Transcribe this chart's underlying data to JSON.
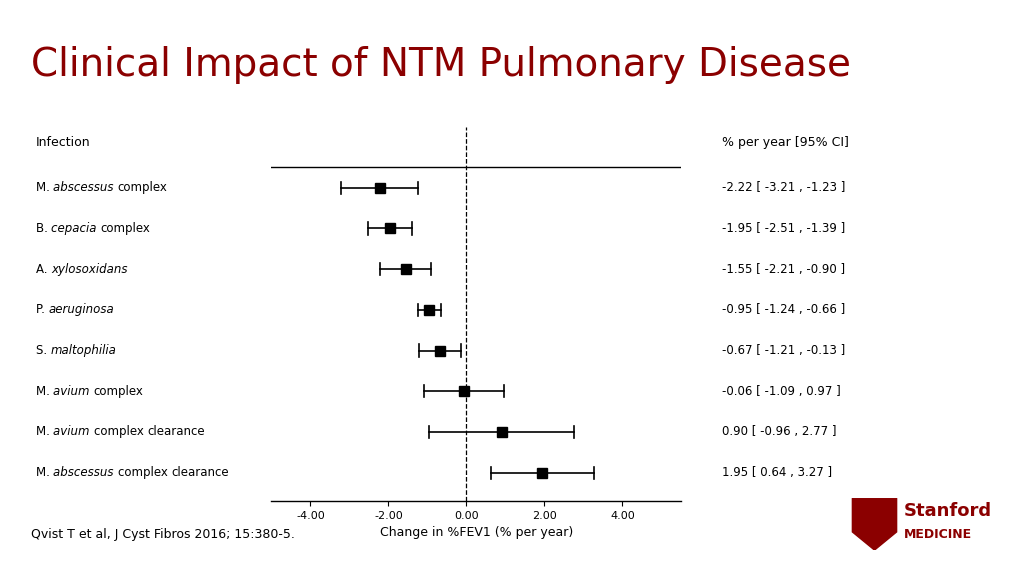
{
  "title": "Clinical Impact of NTM Pulmonary Disease",
  "title_color": "#8B0000",
  "title_fontsize": 28,
  "background_color": "#FFFFFF",
  "accent_bar_color": "#8B0000",
  "col_header_infection": "Infection",
  "col_header_ci": "% per year [95% CI]",
  "xlabel": "Change in %FEV1 (% per year)",
  "xlim": [
    -5.0,
    5.5
  ],
  "xticks": [
    -4.0,
    -2.0,
    0.0,
    2.0,
    4.0
  ],
  "xticklabels": [
    "-4.00",
    "-2.00",
    "0.00",
    "2.00",
    "4.00"
  ],
  "citation": "Qvist T et al, J Cyst Fibros 2016; 15:380-5.",
  "entries": [
    {
      "label": "M. abscessus complex",
      "italic_parts": [
        "M.",
        "abscessus"
      ],
      "mean": -2.22,
      "ci_low": -3.21,
      "ci_high": -1.23,
      "ci_text": "-2.22 [ -3.21 , -1.23 ]"
    },
    {
      "label": "B. cepacia complex",
      "italic_parts": [
        "B.",
        "cepacia"
      ],
      "mean": -1.95,
      "ci_low": -2.51,
      "ci_high": -1.39,
      "ci_text": "-1.95 [ -2.51 , -1.39 ]"
    },
    {
      "label": "A. xylosoxidans",
      "italic_parts": [
        "A.",
        "xylosoxidans"
      ],
      "mean": -1.55,
      "ci_low": -2.21,
      "ci_high": -0.9,
      "ci_text": "-1.55 [ -2.21 , -0.90 ]"
    },
    {
      "label": "P. aeruginosa",
      "italic_parts": [
        "P.",
        "aeruginosa"
      ],
      "mean": -0.95,
      "ci_low": -1.24,
      "ci_high": -0.66,
      "ci_text": "-0.95 [ -1.24 , -0.66 ]"
    },
    {
      "label": "S. maltophilia",
      "italic_parts": [
        "S.",
        "maltophilia"
      ],
      "mean": -0.67,
      "ci_low": -1.21,
      "ci_high": -0.13,
      "ci_text": "-0.67 [ -1.21 , -0.13 ]"
    },
    {
      "label": "M. avium complex",
      "italic_parts": [
        "M.",
        "avium"
      ],
      "mean": -0.06,
      "ci_low": -1.09,
      "ci_high": 0.97,
      "ci_text": "-0.06 [ -1.09 , 0.97 ]"
    },
    {
      "label": "M. avium complex clearance",
      "italic_parts": [
        "M.",
        "avium"
      ],
      "mean": 0.9,
      "ci_low": -0.96,
      "ci_high": 2.77,
      "ci_text": "0.90 [ -0.96 , 2.77 ]"
    },
    {
      "label": "M. abscessus complex clearance",
      "italic_parts": [
        "M.",
        "abscessus"
      ],
      "mean": 1.95,
      "ci_low": 0.64,
      "ci_high": 3.27,
      "ci_text": "1.95 [ 0.64 , 3.27 ]"
    }
  ]
}
